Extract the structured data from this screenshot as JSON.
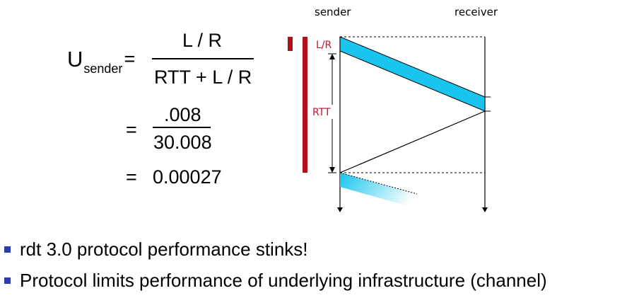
{
  "formula": {
    "u_main": "U",
    "u_sub": "sender",
    "eq1": "=",
    "numerator": "L / R",
    "denominator": "RTT + L / R",
    "eq2": "=",
    "numerator2": ".008",
    "denominator2": "30.008",
    "eq3": "=",
    "result": "0.00027"
  },
  "diagram": {
    "sender_label": "sender",
    "receiver_label": "receiver",
    "lr_label": "L/R",
    "rtt_label": "RTT"
  },
  "bullets": [
    {
      "text": "rdt 3.0 protocol performance stinks!"
    },
    {
      "text": "Protocol limits performance of underlying infrastructure (channel)"
    }
  ],
  "colors": {
    "accent_red": "#b0121b",
    "packet_fill": "#19c5ef",
    "bullet_blue": "#2e3ca8",
    "label_red": "#c8102e"
  }
}
